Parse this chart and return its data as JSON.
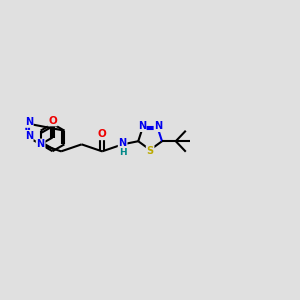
{
  "background_color": "#e0e0e0",
  "bond_color": "#000000",
  "N_color": "#0000ee",
  "O_color": "#ee0000",
  "S_color": "#bbaa00",
  "H_color": "#008888",
  "figsize": [
    3.0,
    3.0
  ],
  "dpi": 100,
  "lw": 1.5,
  "fs": 7.0,
  "xlim": [
    0,
    12
  ],
  "ylim": [
    0,
    10
  ]
}
